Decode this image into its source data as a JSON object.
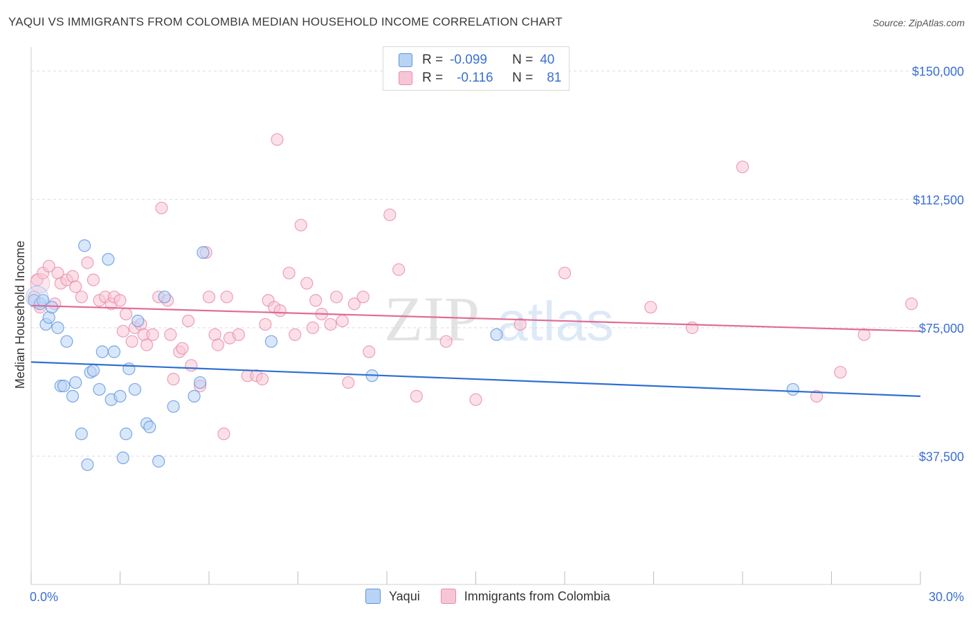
{
  "header": {
    "title": "YAQUI VS IMMIGRANTS FROM COLOMBIA MEDIAN HOUSEHOLD INCOME CORRELATION CHART",
    "source": "Source: ZipAtlas.com"
  },
  "watermark": {
    "part1": "ZIP",
    "part2": "atlas"
  },
  "legend": {
    "rows": [
      {
        "r_label": "R =",
        "r_value": "-0.099",
        "n_label": "N =",
        "n_value": "40"
      },
      {
        "r_label": "R =",
        "r_value": "-0.116",
        "n_label": "N =",
        "n_value": "81"
      }
    ]
  },
  "chart_data": {
    "type": "scatter",
    "title": "YAQUI VS IMMIGRANTS FROM COLOMBIA MEDIAN HOUSEHOLD INCOME CORRELATION CHART",
    "xlabel": "",
    "ylabel": "Median Household Income",
    "xlim": [
      0,
      30
    ],
    "ylim": [
      0,
      155000
    ],
    "x_tick_labels": [
      "0.0%",
      "30.0%"
    ],
    "y_ticks": [
      37500,
      75000,
      112500,
      150000
    ],
    "y_tick_labels": [
      "$37,500",
      "$75,000",
      "$112,500",
      "$150,000"
    ],
    "grid": "horizontal dashed",
    "series": [
      {
        "name": "Yaqui",
        "color": "#5b93e0",
        "fill": "#b9d3f5",
        "R": -0.099,
        "N": 40,
        "trend": {
          "x": [
            0,
            30
          ],
          "y": [
            65000,
            55000
          ]
        },
        "points": [
          [
            0.1,
            83000
          ],
          [
            0.3,
            82000
          ],
          [
            0.4,
            83000
          ],
          [
            0.5,
            76000
          ],
          [
            0.6,
            78000
          ],
          [
            0.7,
            81000
          ],
          [
            0.9,
            75000
          ],
          [
            1.0,
            58000
          ],
          [
            1.1,
            58000
          ],
          [
            1.2,
            71000
          ],
          [
            1.4,
            55000
          ],
          [
            1.5,
            59000
          ],
          [
            1.7,
            44000
          ],
          [
            1.8,
            99000
          ],
          [
            1.9,
            35000
          ],
          [
            2.0,
            62000
          ],
          [
            2.1,
            62500
          ],
          [
            2.3,
            57000
          ],
          [
            2.4,
            68000
          ],
          [
            2.6,
            95000
          ],
          [
            2.7,
            54000
          ],
          [
            2.8,
            68000
          ],
          [
            3.0,
            55000
          ],
          [
            3.1,
            37000
          ],
          [
            3.2,
            44000
          ],
          [
            3.3,
            63000
          ],
          [
            3.5,
            57000
          ],
          [
            3.6,
            77000
          ],
          [
            3.9,
            47000
          ],
          [
            4.0,
            46000
          ],
          [
            4.3,
            36000
          ],
          [
            4.5,
            84000
          ],
          [
            4.8,
            52000
          ],
          [
            5.5,
            55000
          ],
          [
            5.7,
            59000
          ],
          [
            5.8,
            97000
          ],
          [
            8.1,
            71000
          ],
          [
            11.5,
            61000
          ],
          [
            15.7,
            73000
          ],
          [
            25.7,
            57000
          ]
        ]
      },
      {
        "name": "Immigrants from Colombia",
        "color": "#e989a9",
        "fill": "#f7c6d6",
        "R": -0.116,
        "N": 81,
        "trend": {
          "x": [
            0,
            30
          ],
          "y": [
            81500,
            74000
          ]
        },
        "points": [
          [
            0.1,
            84000
          ],
          [
            0.2,
            89000
          ],
          [
            0.3,
            81000
          ],
          [
            0.4,
            91000
          ],
          [
            0.6,
            93000
          ],
          [
            0.8,
            82000
          ],
          [
            0.9,
            91000
          ],
          [
            1.0,
            88000
          ],
          [
            1.2,
            89000
          ],
          [
            1.4,
            90000
          ],
          [
            1.5,
            87000
          ],
          [
            1.7,
            84000
          ],
          [
            1.9,
            94000
          ],
          [
            2.1,
            89000
          ],
          [
            2.3,
            83000
          ],
          [
            2.5,
            84000
          ],
          [
            2.7,
            82000
          ],
          [
            2.8,
            84000
          ],
          [
            3.0,
            83000
          ],
          [
            3.1,
            74000
          ],
          [
            3.2,
            79000
          ],
          [
            3.4,
            71000
          ],
          [
            3.5,
            75000
          ],
          [
            3.7,
            76000
          ],
          [
            3.8,
            73000
          ],
          [
            3.9,
            70000
          ],
          [
            4.1,
            73000
          ],
          [
            4.3,
            84000
          ],
          [
            4.4,
            110000
          ],
          [
            4.6,
            83000
          ],
          [
            4.7,
            73000
          ],
          [
            4.8,
            60000
          ],
          [
            5.0,
            68000
          ],
          [
            5.1,
            69000
          ],
          [
            5.3,
            77000
          ],
          [
            5.4,
            64000
          ],
          [
            5.7,
            58000
          ],
          [
            5.9,
            97000
          ],
          [
            6.0,
            84000
          ],
          [
            6.2,
            73000
          ],
          [
            6.3,
            70000
          ],
          [
            6.5,
            44000
          ],
          [
            6.6,
            84000
          ],
          [
            6.7,
            72000
          ],
          [
            7.0,
            73000
          ],
          [
            7.3,
            61000
          ],
          [
            7.6,
            61000
          ],
          [
            7.8,
            60000
          ],
          [
            7.9,
            76000
          ],
          [
            8.0,
            83000
          ],
          [
            8.2,
            81000
          ],
          [
            8.3,
            130000
          ],
          [
            8.4,
            80000
          ],
          [
            8.7,
            91000
          ],
          [
            8.9,
            73000
          ],
          [
            9.1,
            105000
          ],
          [
            9.3,
            88000
          ],
          [
            9.5,
            75000
          ],
          [
            9.6,
            83000
          ],
          [
            9.8,
            79000
          ],
          [
            10.1,
            76000
          ],
          [
            10.3,
            84000
          ],
          [
            10.5,
            77000
          ],
          [
            10.7,
            59000
          ],
          [
            10.9,
            82000
          ],
          [
            11.2,
            84000
          ],
          [
            11.4,
            68000
          ],
          [
            12.1,
            108000
          ],
          [
            12.4,
            92000
          ],
          [
            13.0,
            55000
          ],
          [
            14.0,
            71000
          ],
          [
            15.0,
            54000
          ],
          [
            16.5,
            76000
          ],
          [
            18.0,
            91000
          ],
          [
            20.9,
            81000
          ],
          [
            22.3,
            75000
          ],
          [
            24.0,
            122000
          ],
          [
            26.5,
            55000
          ],
          [
            27.3,
            62000
          ],
          [
            28.1,
            73000
          ],
          [
            29.7,
            82000
          ]
        ]
      }
    ]
  }
}
